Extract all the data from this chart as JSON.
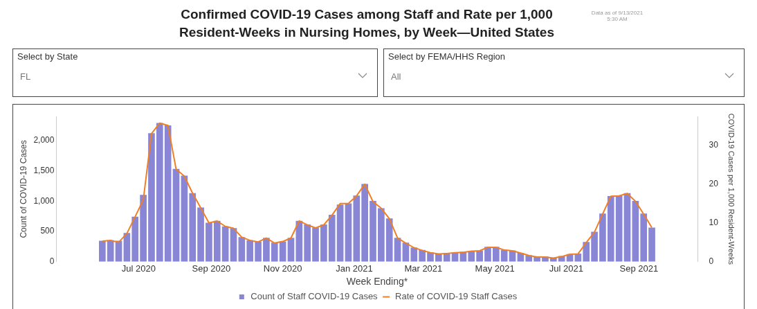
{
  "chart_data": {
    "type": "bar",
    "title": "Confirmed COVID-19 Cases among Staff and Rate per 1,000 Resident-Weeks in Nursing Homes, by Week—United States",
    "annotations": [
      "Data as of 9/13/2021 5:30 AM",
      "Select by State",
      "FL",
      "Select by FEMA/HHS Region",
      "All"
    ],
    "xlabel": "Week Ending*",
    "ylabel": "Count of COVID-19 Cases",
    "y2label": "COVID-19 Cases per 1,000 Resident-Weeks",
    "x": [
      "2020-05-31",
      "2020-06-07",
      "2020-06-14",
      "2020-06-21",
      "2020-06-28",
      "2020-07-05",
      "2020-07-12",
      "2020-07-19",
      "2020-07-26",
      "2020-08-02",
      "2020-08-09",
      "2020-08-16",
      "2020-08-23",
      "2020-08-30",
      "2020-09-06",
      "2020-09-13",
      "2020-09-20",
      "2020-09-27",
      "2020-10-04",
      "2020-10-11",
      "2020-10-18",
      "2020-10-25",
      "2020-11-01",
      "2020-11-08",
      "2020-11-15",
      "2020-11-22",
      "2020-11-29",
      "2020-12-06",
      "2020-12-13",
      "2020-12-20",
      "2020-12-27",
      "2021-01-03",
      "2021-01-10",
      "2021-01-17",
      "2021-01-24",
      "2021-01-31",
      "2021-02-07",
      "2021-02-14",
      "2021-02-21",
      "2021-02-28",
      "2021-03-07",
      "2021-03-14",
      "2021-03-21",
      "2021-03-28",
      "2021-04-04",
      "2021-04-11",
      "2021-04-18",
      "2021-04-25",
      "2021-05-02",
      "2021-05-09",
      "2021-05-16",
      "2021-05-23",
      "2021-05-30",
      "2021-06-06",
      "2021-06-13",
      "2021-06-20",
      "2021-06-27",
      "2021-07-04",
      "2021-07-11",
      "2021-07-18",
      "2021-07-25",
      "2021-08-01",
      "2021-08-08",
      "2021-08-15",
      "2021-08-22",
      "2021-08-29",
      "2021-09-05",
      "2021-09-12"
    ],
    "xlim": [
      "2020-05-26",
      "2021-09-17"
    ],
    "xticks": [
      {
        "value": "2020-07-01",
        "label": "Jul 2020"
      },
      {
        "value": "2020-09-01",
        "label": "Sep 2020"
      },
      {
        "value": "2020-11-01",
        "label": "Nov 2020"
      },
      {
        "value": "2021-01-01",
        "label": "Jan 2021"
      },
      {
        "value": "2021-03-01",
        "label": "Mar 2021"
      },
      {
        "value": "2021-05-01",
        "label": "May 2021"
      },
      {
        "value": "2021-07-01",
        "label": "Jul 2021"
      },
      {
        "value": "2021-09-01",
        "label": "Sep 2021"
      }
    ],
    "ylim": [
      0,
      2400
    ],
    "y2lim": [
      0,
      37.5
    ],
    "yticks": [
      0,
      500,
      {
        "value": 1000,
        "label": "1,000"
      },
      {
        "value": 1500,
        "label": "1,500"
      },
      {
        "value": 2000,
        "label": "2,000"
      }
    ],
    "y2ticks": [
      0,
      10,
      20,
      30
    ],
    "legend": "bottom",
    "series": [
      {
        "name": "Count of Staff COVID-19 Cases",
        "color": "#8a86d6",
        "values": [
          340,
          350,
          340,
          470,
          740,
          1100,
          2120,
          2290,
          2250,
          1530,
          1420,
          1130,
          890,
          640,
          670,
          580,
          550,
          400,
          350,
          330,
          390,
          310,
          330,
          390,
          670,
          610,
          560,
          610,
          770,
          940,
          960,
          1090,
          1280,
          1000,
          880,
          710,
          390,
          310,
          230,
          190,
          150,
          130,
          140,
          150,
          160,
          170,
          180,
          240,
          240,
          190,
          180,
          140,
          100,
          80,
          80,
          60,
          90,
          120,
          130,
          320,
          490,
          790,
          1080,
          1090,
          1130,
          1000,
          790,
          560
        ]
      },
      {
        "name": "Rate of COVID-19 Staff Cases",
        "type": "line",
        "axis": "y2",
        "color": "#f07f23",
        "values": [
          5.3,
          5.5,
          5.0,
          7.3,
          11.6,
          16.0,
          33.1,
          35.8,
          35.2,
          23.9,
          22.1,
          17.7,
          13.9,
          10.0,
          10.5,
          9.1,
          8.6,
          6.3,
          5.5,
          5.1,
          6.1,
          4.8,
          5.2,
          6.1,
          10.5,
          9.5,
          8.7,
          9.5,
          12.0,
          15.0,
          15.0,
          17.0,
          20.0,
          15.5,
          13.8,
          11.1,
          6.1,
          4.8,
          3.6,
          2.9,
          2.3,
          2.0,
          2.1,
          2.3,
          2.4,
          2.7,
          2.8,
          3.7,
          3.7,
          3.0,
          2.8,
          2.2,
          1.6,
          1.2,
          1.2,
          0.9,
          1.3,
          1.9,
          2.0,
          4.9,
          7.6,
          12.3,
          16.9,
          17.0,
          17.6,
          15.6,
          12.3,
          8.8
        ]
      }
    ]
  }
}
